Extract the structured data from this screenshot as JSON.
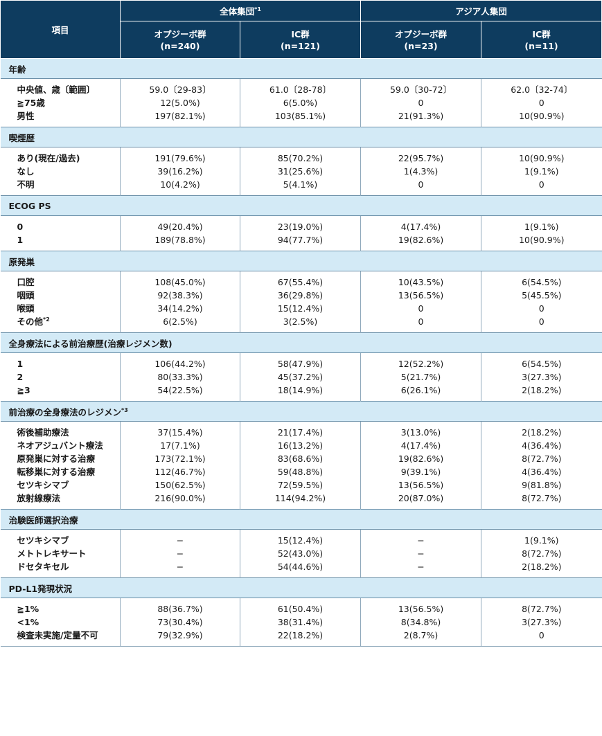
{
  "header": {
    "item_label": "項目",
    "group_all": "全体集団",
    "group_all_note": "*1",
    "group_asian": "アジア人集団",
    "columns": [
      {
        "name": "オプジーボ群",
        "n": "(n=240)"
      },
      {
        "name": "IC群",
        "n": "(n=121)"
      },
      {
        "name": "オプジーボ群",
        "n": "(n=23)"
      },
      {
        "name": "IC群",
        "n": "(n=11)"
      }
    ]
  },
  "sections": [
    {
      "title": "年齢",
      "note": "",
      "rows": [
        {
          "label": "中央値、歳〔範囲〕",
          "note": "",
          "values": [
            "59.0〔29-83〕",
            "61.0〔28-78〕",
            "59.0〔30-72〕",
            "62.0〔32-74〕"
          ]
        },
        {
          "label": "≧75歳",
          "note": "",
          "values": [
            "12(5.0%)",
            "6(5.0%)",
            "0",
            "0"
          ]
        },
        {
          "label": "男性",
          "note": "",
          "values": [
            "197(82.1%)",
            "103(85.1%)",
            "21(91.3%)",
            "10(90.9%)"
          ]
        }
      ]
    },
    {
      "title": "喫煙歴",
      "note": "",
      "rows": [
        {
          "label": "あり(現在/過去)",
          "note": "",
          "values": [
            "191(79.6%)",
            "85(70.2%)",
            "22(95.7%)",
            "10(90.9%)"
          ]
        },
        {
          "label": "なし",
          "note": "",
          "values": [
            "39(16.2%)",
            "31(25.6%)",
            "1(4.3%)",
            "1(9.1%)"
          ]
        },
        {
          "label": "不明",
          "note": "",
          "values": [
            "10(4.2%)",
            "5(4.1%)",
            "0",
            "0"
          ]
        }
      ]
    },
    {
      "title": "ECOG PS",
      "note": "",
      "rows": [
        {
          "label": "0",
          "note": "",
          "values": [
            "49(20.4%)",
            "23(19.0%)",
            "4(17.4%)",
            "1(9.1%)"
          ]
        },
        {
          "label": "1",
          "note": "",
          "values": [
            "189(78.8%)",
            "94(77.7%)",
            "19(82.6%)",
            "10(90.9%)"
          ]
        }
      ]
    },
    {
      "title": "原発巣",
      "note": "",
      "rows": [
        {
          "label": "口腔",
          "note": "",
          "values": [
            "108(45.0%)",
            "67(55.4%)",
            "10(43.5%)",
            "6(54.5%)"
          ]
        },
        {
          "label": "咽頭",
          "note": "",
          "values": [
            "92(38.3%)",
            "36(29.8%)",
            "13(56.5%)",
            "5(45.5%)"
          ]
        },
        {
          "label": "喉頭",
          "note": "",
          "values": [
            "34(14.2%)",
            "15(12.4%)",
            "0",
            "0"
          ]
        },
        {
          "label": "その他",
          "note": "*2",
          "values": [
            "6(2.5%)",
            "3(2.5%)",
            "0",
            "0"
          ]
        }
      ]
    },
    {
      "title": "全身療法による前治療歴(治療レジメン数)",
      "note": "",
      "rows": [
        {
          "label": "1",
          "note": "",
          "values": [
            "106(44.2%)",
            "58(47.9%)",
            "12(52.2%)",
            "6(54.5%)"
          ]
        },
        {
          "label": "2",
          "note": "",
          "values": [
            "80(33.3%)",
            "45(37.2%)",
            "5(21.7%)",
            "3(27.3%)"
          ]
        },
        {
          "label": "≧3",
          "note": "",
          "values": [
            "54(22.5%)",
            "18(14.9%)",
            "6(26.1%)",
            "2(18.2%)"
          ]
        }
      ]
    },
    {
      "title": "前治療の全身療法のレジメン",
      "note": "*3",
      "rows": [
        {
          "label": "術後補助療法",
          "note": "",
          "values": [
            "37(15.4%)",
            "21(17.4%)",
            "3(13.0%)",
            "2(18.2%)"
          ]
        },
        {
          "label": "ネオアジュバント療法",
          "note": "",
          "values": [
            "17(7.1%)",
            "16(13.2%)",
            "4(17.4%)",
            "4(36.4%)"
          ]
        },
        {
          "label": "原発巣に対する治療",
          "note": "",
          "values": [
            "173(72.1%)",
            "83(68.6%)",
            "19(82.6%)",
            "8(72.7%)"
          ]
        },
        {
          "label": "転移巣に対する治療",
          "note": "",
          "values": [
            "112(46.7%)",
            "59(48.8%)",
            "9(39.1%)",
            "4(36.4%)"
          ]
        },
        {
          "label": "セツキシマブ",
          "note": "",
          "values": [
            "150(62.5%)",
            "72(59.5%)",
            "13(56.5%)",
            "9(81.8%)"
          ]
        },
        {
          "label": "放射線療法",
          "note": "",
          "values": [
            "216(90.0%)",
            "114(94.2%)",
            "20(87.0%)",
            "8(72.7%)"
          ]
        }
      ]
    },
    {
      "title": "治験医師選択治療",
      "note": "",
      "rows": [
        {
          "label": "セツキシマブ",
          "note": "",
          "values": [
            "−",
            "15(12.4%)",
            "−",
            "1(9.1%)"
          ]
        },
        {
          "label": "メトトレキサート",
          "note": "",
          "values": [
            "−",
            "52(43.0%)",
            "−",
            "8(72.7%)"
          ]
        },
        {
          "label": "ドセタキセル",
          "note": "",
          "values": [
            "−",
            "54(44.6%)",
            "−",
            "2(18.2%)"
          ]
        }
      ]
    },
    {
      "title": "PD-L1発現状況",
      "note": "",
      "rows": [
        {
          "label": "≧1%",
          "note": "",
          "values": [
            "88(36.7%)",
            "61(50.4%)",
            "13(56.5%)",
            "8(72.7%)"
          ]
        },
        {
          "label": "<1%",
          "note": "",
          "values": [
            "73(30.4%)",
            "38(31.4%)",
            "8(34.8%)",
            "3(27.3%)"
          ]
        },
        {
          "label": "検査未実施/定量不可",
          "note": "",
          "values": [
            "79(32.9%)",
            "22(18.2%)",
            "2(8.7%)",
            "0"
          ]
        }
      ]
    }
  ]
}
